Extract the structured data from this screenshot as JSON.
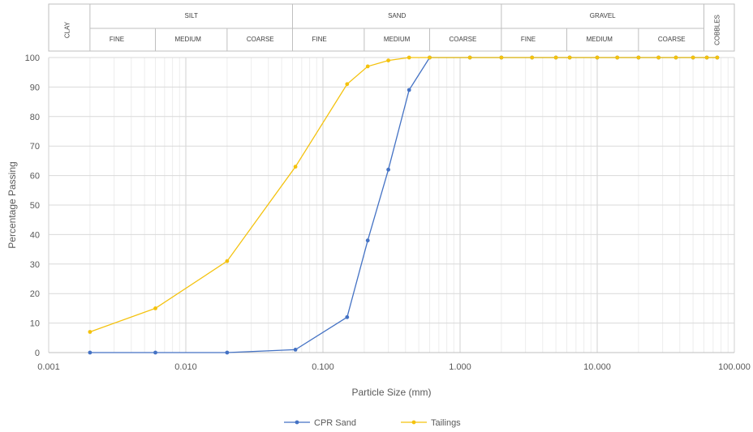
{
  "chart_data": {
    "type": "line",
    "x_scale": "log",
    "xlim": [
      0.001,
      100
    ],
    "ylim": [
      0,
      100
    ],
    "xlabel": "Particle Size (mm)",
    "ylabel": "Percentage Passing",
    "x_tick_labels": [
      "0.001",
      "0.010",
      "0.100",
      "1.000",
      "10.000",
      "100.000"
    ],
    "y_tick_labels": [
      "0",
      "10",
      "20",
      "30",
      "40",
      "50",
      "60",
      "70",
      "80",
      "90",
      "100"
    ],
    "grid": true,
    "legend_position": "bottom",
    "classification": {
      "clay": "CLAY",
      "cobbles": "COBBLES",
      "groups": [
        {
          "name": "SILT",
          "subs": [
            "FINE",
            "MEDIUM",
            "COARSE"
          ]
        },
        {
          "name": "SAND",
          "subs": [
            "FINE",
            "MEDIUM",
            "COARSE"
          ]
        },
        {
          "name": "GRAVEL",
          "subs": [
            "FINE",
            "MEDIUM",
            "COARSE"
          ]
        }
      ]
    },
    "series": [
      {
        "name": "CPR Sand",
        "color": "#4472c4",
        "x": [
          0.002,
          0.006,
          0.02,
          0.063,
          0.15,
          0.212,
          0.3,
          0.425,
          0.6,
          1.18,
          2,
          3.35,
          5,
          6.3,
          10,
          14,
          20,
          28,
          37.5,
          50,
          63,
          75
        ],
        "y": [
          0,
          0,
          0,
          1,
          12,
          38,
          62,
          89,
          100,
          100,
          100,
          100,
          100,
          100,
          100,
          100,
          100,
          100,
          100,
          100,
          100,
          100
        ]
      },
      {
        "name": "Tailings",
        "color": "#f4c20d",
        "x": [
          0.002,
          0.006,
          0.02,
          0.063,
          0.15,
          0.212,
          0.3,
          0.425,
          0.6,
          1.18,
          2,
          3.35,
          5,
          6.3,
          10,
          14,
          20,
          28,
          37.5,
          50,
          63,
          75
        ],
        "y": [
          7,
          15,
          31,
          63,
          91,
          97,
          99,
          100,
          100,
          100,
          100,
          100,
          100,
          100,
          100,
          100,
          100,
          100,
          100,
          100,
          100,
          100
        ]
      }
    ]
  }
}
